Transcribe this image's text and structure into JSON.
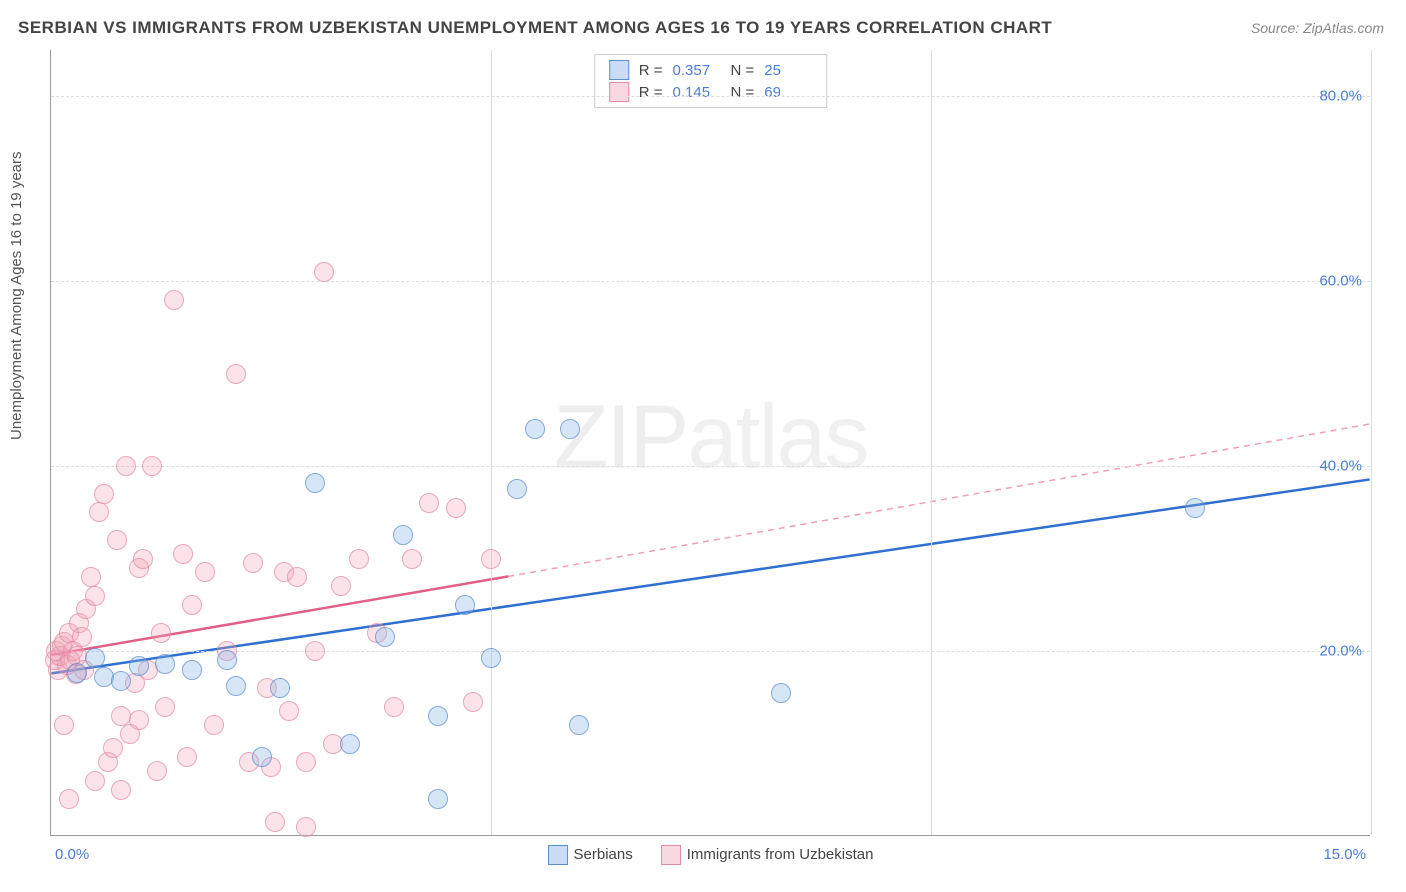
{
  "title": "SERBIAN VS IMMIGRANTS FROM UZBEKISTAN UNEMPLOYMENT AMONG AGES 16 TO 19 YEARS CORRELATION CHART",
  "source": "Source: ZipAtlas.com",
  "watermark_a": "ZIP",
  "watermark_b": "atlas",
  "chart": {
    "type": "scatter",
    "ylabel": "Unemployment Among Ages 16 to 19 years",
    "xlim": [
      0,
      15
    ],
    "ylim": [
      0,
      85
    ],
    "x_ticks": [
      0,
      5,
      10,
      15
    ],
    "x_tick_labels": [
      "0.0%",
      "",
      "",
      "15.0%"
    ],
    "y_ticks": [
      20,
      40,
      60,
      80
    ],
    "y_tick_labels": [
      "20.0%",
      "40.0%",
      "60.0%",
      "80.0%"
    ],
    "background_color": "#ffffff",
    "grid_color": "#dddddd",
    "grid_dash": "4 4",
    "axis_color": "#999999",
    "label_fontsize": 15,
    "tick_color": "#4a7dd4",
    "series_a": {
      "name": "Serbians",
      "marker_color": "#8ab4e6",
      "marker_border": "#5a8fd0",
      "marker_size": 20,
      "r": "0.357",
      "n": "25",
      "trend": {
        "x1": 0,
        "y1": 17.5,
        "x2": 15,
        "y2": 38.5,
        "color": "#2e6fd0",
        "width": 2.5
      },
      "points": [
        [
          0.3,
          17.6
        ],
        [
          0.5,
          19.2
        ],
        [
          0.6,
          17.2
        ],
        [
          0.8,
          16.8
        ],
        [
          1.0,
          18.4
        ],
        [
          1.3,
          18.6
        ],
        [
          1.6,
          18.0
        ],
        [
          2.0,
          19.0
        ],
        [
          2.1,
          16.2
        ],
        [
          2.4,
          8.5
        ],
        [
          2.6,
          16.0
        ],
        [
          3.0,
          38.2
        ],
        [
          3.4,
          10.0
        ],
        [
          3.8,
          21.5
        ],
        [
          4.0,
          32.5
        ],
        [
          4.4,
          4.0
        ],
        [
          4.7,
          25.0
        ],
        [
          5.0,
          19.2
        ],
        [
          5.3,
          37.5
        ],
        [
          5.5,
          44.0
        ],
        [
          5.9,
          44.0
        ],
        [
          6.0,
          12.0
        ],
        [
          8.3,
          15.5
        ],
        [
          13.0,
          35.5
        ],
        [
          4.4,
          13.0
        ]
      ]
    },
    "series_b": {
      "name": "Immigrants from Uzbekistan",
      "marker_color": "#f0a0b4",
      "marker_border": "#e48aa3",
      "marker_size": 20,
      "r": "0.145",
      "n": "69",
      "trend_solid": {
        "x1": 0,
        "y1": 19.5,
        "x2": 5.2,
        "y2": 28.0,
        "color": "#e06088",
        "width": 2.5
      },
      "trend_dashed": {
        "x1": 5.2,
        "y1": 28.0,
        "x2": 15,
        "y2": 44.5,
        "color": "#f0a0b4",
        "width": 1.5,
        "dash": "6 5"
      },
      "points": [
        [
          0.04,
          19.0
        ],
        [
          0.06,
          20.0
        ],
        [
          0.08,
          18.0
        ],
        [
          0.1,
          19.5
        ],
        [
          0.12,
          20.5
        ],
        [
          0.15,
          21.0
        ],
        [
          0.18,
          18.5
        ],
        [
          0.2,
          22.0
        ],
        [
          0.22,
          19.0
        ],
        [
          0.25,
          20.0
        ],
        [
          0.28,
          17.5
        ],
        [
          0.3,
          19.5
        ],
        [
          0.32,
          23.0
        ],
        [
          0.35,
          21.5
        ],
        [
          0.38,
          18.0
        ],
        [
          0.4,
          24.5
        ],
        [
          0.45,
          28.0
        ],
        [
          0.5,
          26.0
        ],
        [
          0.55,
          35.0
        ],
        [
          0.6,
          37.0
        ],
        [
          0.65,
          8.0
        ],
        [
          0.7,
          9.5
        ],
        [
          0.75,
          32.0
        ],
        [
          0.8,
          13.0
        ],
        [
          0.85,
          40.0
        ],
        [
          0.9,
          11.0
        ],
        [
          0.95,
          16.5
        ],
        [
          1.0,
          29.0
        ],
        [
          1.05,
          30.0
        ],
        [
          1.1,
          18.0
        ],
        [
          1.15,
          40.0
        ],
        [
          1.2,
          7.0
        ],
        [
          1.25,
          22.0
        ],
        [
          1.3,
          14.0
        ],
        [
          1.4,
          58.0
        ],
        [
          1.5,
          30.5
        ],
        [
          1.55,
          8.5
        ],
        [
          1.6,
          25.0
        ],
        [
          1.75,
          28.5
        ],
        [
          1.85,
          12.0
        ],
        [
          2.0,
          20.0
        ],
        [
          2.1,
          50.0
        ],
        [
          2.25,
          8.0
        ],
        [
          2.3,
          29.5
        ],
        [
          2.45,
          16.0
        ],
        [
          2.5,
          7.5
        ],
        [
          2.65,
          28.5
        ],
        [
          2.7,
          13.5
        ],
        [
          2.8,
          28.0
        ],
        [
          2.9,
          8.0
        ],
        [
          3.0,
          20.0
        ],
        [
          3.1,
          61.0
        ],
        [
          3.2,
          10.0
        ],
        [
          3.3,
          27.0
        ],
        [
          3.5,
          30.0
        ],
        [
          3.7,
          22.0
        ],
        [
          3.9,
          14.0
        ],
        [
          4.1,
          30.0
        ],
        [
          4.3,
          36.0
        ],
        [
          4.6,
          35.5
        ],
        [
          4.8,
          14.5
        ],
        [
          5.0,
          30.0
        ],
        [
          2.55,
          1.5
        ],
        [
          2.9,
          1.0
        ],
        [
          0.2,
          4.0
        ],
        [
          0.15,
          12.0
        ],
        [
          0.5,
          6.0
        ],
        [
          0.8,
          5.0
        ],
        [
          1.0,
          12.5
        ]
      ]
    }
  },
  "legend": {
    "r_label": "R =",
    "n_label": "N ="
  }
}
